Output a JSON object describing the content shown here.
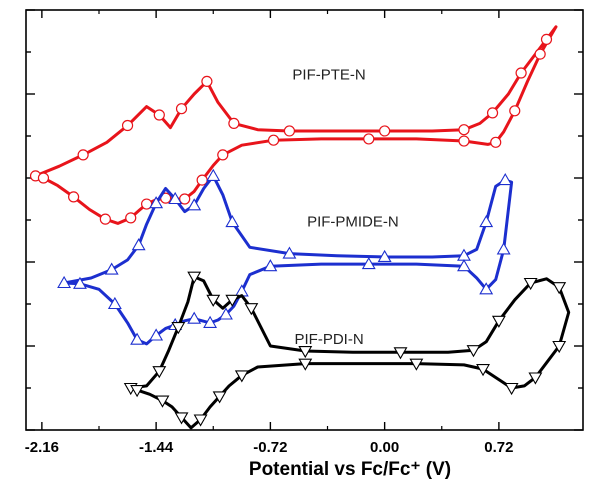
{
  "chart_data": {
    "type": "line",
    "title": "",
    "xlabel": "Potential vs Fc/Fc⁺ (V)",
    "ylabel": "",
    "x_ticks": [
      "-2.16",
      "-1.44",
      "-0.72",
      "0.00",
      "0.72"
    ],
    "x_tick_values": [
      -2.16,
      -1.44,
      -0.72,
      0.0,
      0.72
    ],
    "xlim": [
      -2.26,
      1.25
    ],
    "ylim": [
      0,
      10
    ],
    "grid": false,
    "legend": "none",
    "series": [
      {
        "name": "PIF-PTE-N",
        "color": "#e8141b",
        "marker": "circle",
        "label_x": -0.35,
        "label_y": 8.35,
        "x": [
          -2.2,
          -2.05,
          -1.9,
          -1.75,
          -1.62,
          -1.5,
          -1.42,
          -1.35,
          -1.28,
          -1.2,
          -1.12,
          -1.05,
          -0.95,
          -0.8,
          -0.6,
          -0.3,
          0.0,
          0.3,
          0.5,
          0.6,
          0.68,
          0.78,
          0.86,
          0.95,
          1.02,
          1.08,
          0.98,
          0.9,
          0.82,
          0.75,
          0.7,
          0.65,
          0.5,
          0.2,
          -0.1,
          -0.4,
          -0.7,
          -0.9,
          -1.02,
          -1.08,
          -1.15,
          -1.2,
          -1.26,
          -1.32,
          -1.38,
          -1.44,
          -1.5,
          -1.55,
          -1.6,
          -1.68,
          -1.76,
          -1.86,
          -1.96,
          -2.06,
          -2.15,
          -2.2
        ],
        "y": [
          6.05,
          6.28,
          6.55,
          6.85,
          7.25,
          7.7,
          7.5,
          7.2,
          7.65,
          8.0,
          8.3,
          7.8,
          7.3,
          7.15,
          7.12,
          7.12,
          7.12,
          7.12,
          7.15,
          7.3,
          7.55,
          8.0,
          8.5,
          8.95,
          9.3,
          9.6,
          8.95,
          8.3,
          7.6,
          7.1,
          6.85,
          6.8,
          6.88,
          6.93,
          6.93,
          6.93,
          6.9,
          6.78,
          6.55,
          6.3,
          5.95,
          5.68,
          5.5,
          5.5,
          5.52,
          5.48,
          5.38,
          5.22,
          5.05,
          4.92,
          5.02,
          5.25,
          5.55,
          5.82,
          6.0,
          6.05
        ]
      },
      {
        "name": "PIF-PMIDE-N",
        "color": "#1c2fcf",
        "marker": "triangle-up",
        "label_x": -0.2,
        "label_y": 4.85,
        "x": [
          -2.02,
          -1.85,
          -1.72,
          -1.62,
          -1.55,
          -1.5,
          -1.44,
          -1.38,
          -1.32,
          -1.26,
          -1.2,
          -1.14,
          -1.08,
          -1.02,
          -0.96,
          -0.85,
          -0.6,
          -0.3,
          0.0,
          0.3,
          0.5,
          0.58,
          0.64,
          0.7,
          0.76,
          0.8,
          0.75,
          0.7,
          0.64,
          0.58,
          0.5,
          0.2,
          -0.1,
          -0.4,
          -0.72,
          -0.85,
          -0.9,
          -0.95,
          -1.0,
          -1.05,
          -1.1,
          -1.15,
          -1.2,
          -1.26,
          -1.32,
          -1.38,
          -1.44,
          -1.5,
          -1.56,
          -1.62,
          -1.7,
          -1.8,
          -1.92,
          -2.02
        ],
        "y": [
          3.5,
          3.62,
          3.82,
          4.05,
          4.4,
          4.9,
          5.4,
          5.75,
          5.5,
          5.2,
          5.35,
          5.75,
          6.05,
          5.6,
          4.95,
          4.35,
          4.2,
          4.15,
          4.12,
          4.12,
          4.15,
          4.3,
          4.95,
          5.8,
          5.95,
          5.9,
          4.3,
          3.58,
          3.35,
          3.62,
          3.9,
          3.95,
          3.95,
          3.95,
          3.9,
          3.7,
          3.3,
          2.95,
          2.75,
          2.62,
          2.55,
          2.6,
          2.65,
          2.6,
          2.5,
          2.42,
          2.25,
          2.05,
          2.15,
          2.55,
          3.0,
          3.35,
          3.48,
          3.5
        ]
      },
      {
        "name": "PIF-PDI-N",
        "color": "#000000",
        "marker": "triangle-down",
        "label_x": -0.35,
        "label_y": 2.05,
        "x": [
          -1.6,
          -1.5,
          -1.42,
          -1.36,
          -1.3,
          -1.24,
          -1.2,
          -1.14,
          -1.08,
          -1.02,
          -0.96,
          -0.9,
          -0.84,
          -0.72,
          -0.5,
          -0.2,
          0.1,
          0.4,
          0.56,
          0.64,
          0.72,
          0.82,
          0.92,
          1.02,
          1.1,
          1.16,
          1.1,
          1.02,
          0.95,
          0.88,
          0.8,
          0.72,
          0.62,
          0.5,
          0.2,
          -0.1,
          -0.5,
          -0.8,
          -0.9,
          -0.98,
          -1.04,
          -1.1,
          -1.16,
          -1.22,
          -1.28,
          -1.34,
          -1.4,
          -1.48,
          -1.56,
          -1.6
        ],
        "y": [
          1.0,
          1.05,
          1.4,
          1.9,
          2.45,
          3.05,
          3.65,
          3.55,
          3.1,
          2.9,
          3.1,
          3.2,
          2.9,
          2.0,
          1.88,
          1.85,
          1.85,
          1.85,
          1.9,
          2.1,
          2.6,
          3.1,
          3.5,
          3.6,
          3.4,
          2.8,
          2.0,
          1.6,
          1.25,
          1.05,
          1.0,
          1.2,
          1.45,
          1.55,
          1.58,
          1.58,
          1.58,
          1.5,
          1.3,
          1.05,
          0.8,
          0.55,
          0.25,
          0.05,
          0.3,
          0.55,
          0.7,
          0.85,
          0.95,
          1.0
        ]
      }
    ]
  }
}
